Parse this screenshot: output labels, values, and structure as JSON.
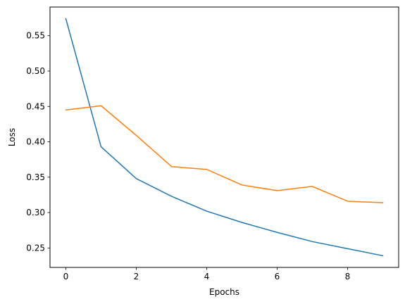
{
  "chart_data": {
    "type": "line",
    "title": "",
    "xlabel": "Epochs",
    "ylabel": "Loss",
    "xlim": [
      -0.45,
      9.45
    ],
    "ylim": [
      0.2225,
      0.5905
    ],
    "xticks": [
      0,
      2,
      4,
      6,
      8
    ],
    "xtick_labels": [
      "0",
      "2",
      "4",
      "6",
      "8"
    ],
    "yticks": [
      0.25,
      0.3,
      0.35,
      0.4,
      0.45,
      0.5,
      0.55
    ],
    "ytick_labels": [
      "0.25",
      "0.30",
      "0.35",
      "0.40",
      "0.45",
      "0.50",
      "0.55"
    ],
    "grid": false,
    "legend": "none",
    "x": [
      0,
      1,
      2,
      3,
      4,
      5,
      6,
      7,
      8,
      9
    ],
    "series": [
      {
        "color": "#1f77b4",
        "values": [
          0.574,
          0.393,
          0.348,
          0.323,
          0.302,
          0.286,
          0.272,
          0.259,
          0.249,
          0.239
        ]
      },
      {
        "color": "#ff7f0e",
        "values": [
          0.445,
          0.451,
          0.409,
          0.365,
          0.361,
          0.339,
          0.331,
          0.337,
          0.316,
          0.314
        ]
      }
    ]
  }
}
